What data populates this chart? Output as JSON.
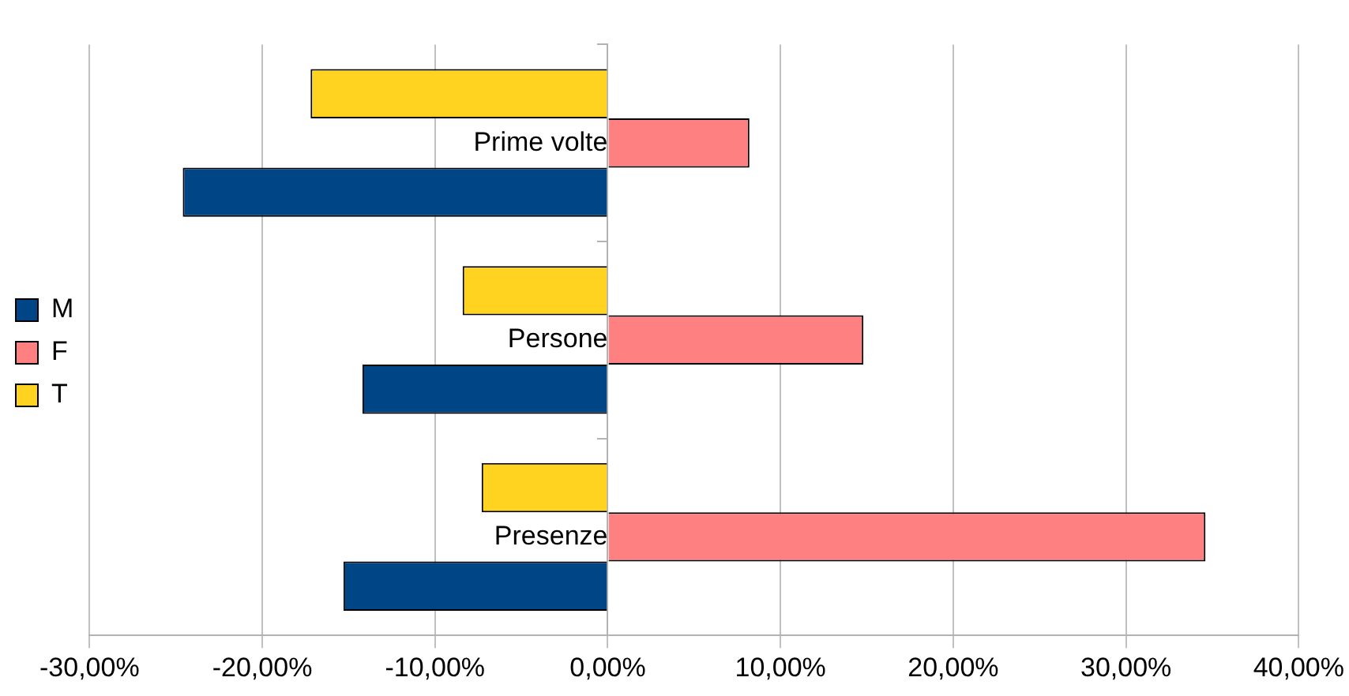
{
  "chart_data": {
    "type": "bar",
    "orientation": "horizontal",
    "categories": [
      "Prime volte",
      "Persone",
      "Presenze"
    ],
    "series": [
      {
        "name": "M",
        "color": "#004586",
        "values": [
          -24.6,
          -14.2,
          -15.3
        ]
      },
      {
        "name": "F",
        "color": "#ff8080",
        "values": [
          8.2,
          14.8,
          34.6
        ]
      },
      {
        "name": "T",
        "color": "#ffd320",
        "values": [
          -17.2,
          -8.4,
          -7.3
        ]
      }
    ],
    "xlim": [
      -30,
      40
    ],
    "xticks": [
      {
        "value": -30,
        "label": "-30,00%"
      },
      {
        "value": -20,
        "label": "-20,00%"
      },
      {
        "value": -10,
        "label": "-10,00%"
      },
      {
        "value": 0,
        "label": "0,00%"
      },
      {
        "value": 10,
        "label": "10,00%"
      },
      {
        "value": 20,
        "label": "20,00%"
      },
      {
        "value": 30,
        "label": "30,00%"
      },
      {
        "value": 40,
        "label": "40,00%"
      }
    ],
    "grid": "x",
    "legend": "left"
  }
}
